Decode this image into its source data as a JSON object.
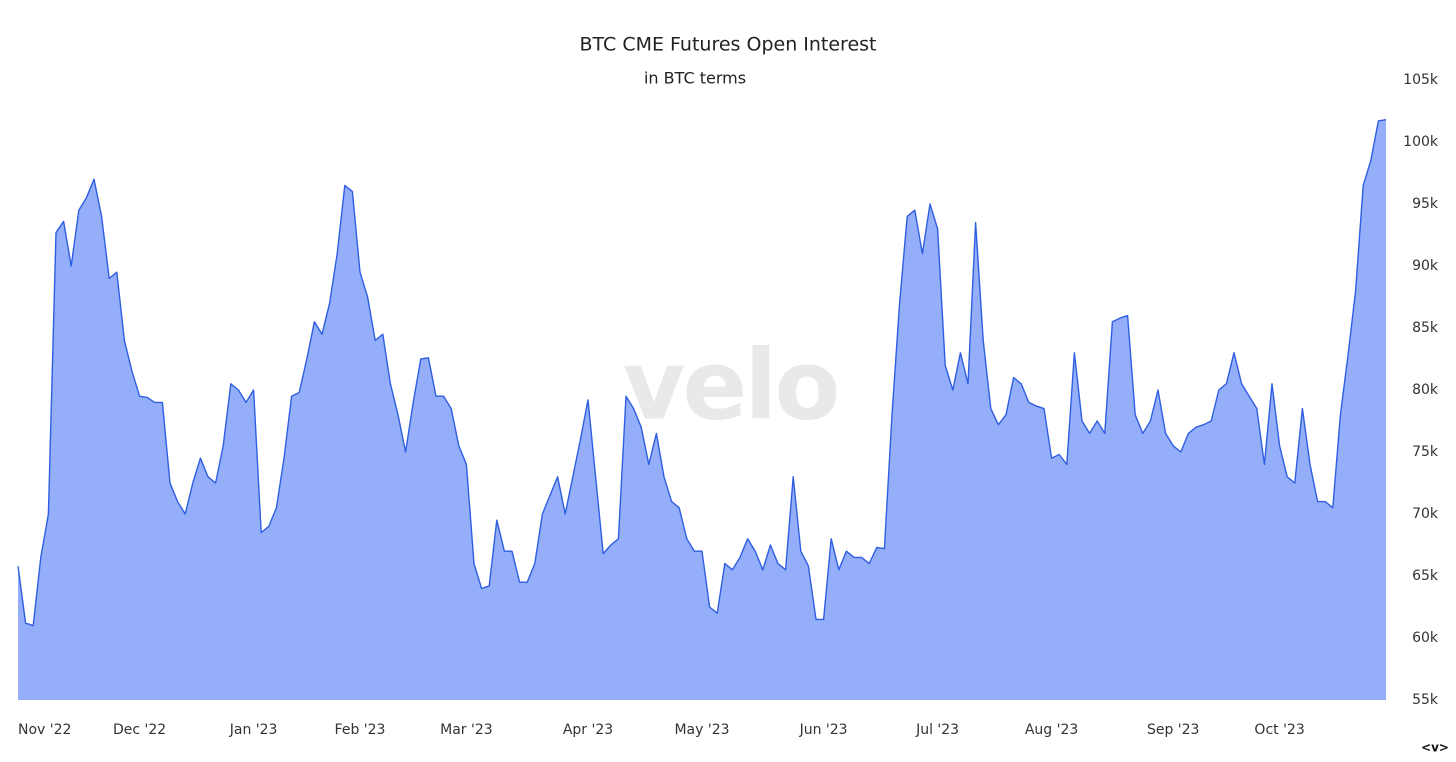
{
  "chart_data": {
    "type": "area",
    "title": "BTC CME Futures Open Interest",
    "subtitle": "in BTC terms",
    "watermark": "velo",
    "badge": "<v>",
    "categories": [
      "Nov '22",
      null,
      null,
      null,
      null,
      null,
      null,
      null,
      null,
      null,
      null,
      null,
      null,
      null,
      null,
      null,
      "Dec '22",
      null,
      null,
      null,
      null,
      null,
      null,
      null,
      null,
      null,
      null,
      null,
      null,
      null,
      null,
      "Jan '23",
      null,
      null,
      null,
      null,
      null,
      null,
      null,
      null,
      null,
      null,
      null,
      null,
      null,
      "Feb '23",
      null,
      null,
      null,
      null,
      null,
      null,
      null,
      null,
      null,
      null,
      null,
      null,
      null,
      "Mar '23",
      null,
      null,
      null,
      null,
      null,
      null,
      null,
      null,
      null,
      null,
      null,
      null,
      null,
      null,
      null,
      "Apr '23",
      null,
      null,
      null,
      null,
      null,
      null,
      null,
      null,
      null,
      null,
      null,
      null,
      null,
      null,
      "May '23",
      null,
      null,
      null,
      null,
      null,
      null,
      null,
      null,
      null,
      null,
      null,
      null,
      null,
      null,
      null,
      "Jun '23",
      null,
      null,
      null,
      null,
      null,
      null,
      null,
      null,
      null,
      null,
      null,
      null,
      null,
      null,
      "Jul '23",
      null,
      null,
      null,
      null,
      null,
      null,
      null,
      null,
      null,
      null,
      null,
      null,
      null,
      null,
      "Aug '23",
      null,
      null,
      null,
      null,
      null,
      null,
      null,
      null,
      null,
      null,
      null,
      null,
      null,
      null,
      null,
      "Sep '23",
      null,
      null,
      null,
      null,
      null,
      null,
      null,
      null,
      null,
      null,
      null,
      null,
      null,
      "Oct '23",
      null,
      null,
      null,
      null,
      null,
      null,
      null,
      null,
      null,
      null,
      null,
      null,
      null,
      null
    ],
    "values": [
      65800,
      61200,
      61000,
      66500,
      70000,
      92700,
      93600,
      90000,
      94500,
      95500,
      97000,
      94000,
      89000,
      89500,
      84000,
      81500,
      79500,
      79400,
      79000,
      79000,
      72500,
      71000,
      70000,
      72500,
      74500,
      73000,
      72500,
      75500,
      80500,
      80000,
      79000,
      80000,
      68500,
      69000,
      70500,
      74500,
      79500,
      79800,
      82500,
      85500,
      84500,
      87000,
      91000,
      96500,
      96000,
      89500,
      87500,
      84000,
      84500,
      80500,
      78000,
      75000,
      79000,
      82500,
      82600,
      79500,
      79500,
      78500,
      75500,
      74000,
      66000,
      64000,
      64200,
      69500,
      67000,
      67000,
      64500,
      64500,
      66000,
      70000,
      71500,
      73000,
      70000,
      73000,
      76000,
      79200,
      73000,
      66800,
      67500,
      68000,
      79500,
      78500,
      77000,
      74000,
      76500,
      73000,
      71000,
      70500,
      68000,
      67000,
      67000,
      62500,
      62000,
      66000,
      65500,
      66500,
      68000,
      67000,
      65500,
      67500,
      66000,
      65500,
      73000,
      67000,
      65800,
      61500,
      61500,
      68000,
      65500,
      67000,
      66500,
      66500,
      66000,
      67300,
      67200,
      78000,
      87000,
      94000,
      94500,
      91000,
      95000,
      93000,
      82000,
      80000,
      83000,
      80500,
      93500,
      84000,
      78500,
      77200,
      78000,
      81000,
      80500,
      79000,
      78700,
      78500,
      74500,
      74800,
      74000,
      83000,
      77500,
      76500,
      77500,
      76500,
      85500,
      85800,
      86000,
      78000,
      76500,
      77500,
      80000,
      76500,
      75500,
      75000,
      76500,
      77000,
      77200,
      77500,
      80000,
      80500,
      83000,
      80500,
      79500,
      78500,
      74000,
      80500,
      75500,
      73000,
      72500,
      78500,
      74000,
      71000,
      71000,
      70500,
      78000,
      82800,
      88000,
      96500,
      98500,
      101700,
      101800
    ],
    "color": "#2f5fe0",
    "fill_color": "#94aefa",
    "ylim": [
      55000,
      105000
    ],
    "yticks": [
      {
        "value": 55000,
        "label": "55k"
      },
      {
        "value": 60000,
        "label": "60k"
      },
      {
        "value": 65000,
        "label": "65k"
      },
      {
        "value": 70000,
        "label": "70k"
      },
      {
        "value": 75000,
        "label": "75k"
      },
      {
        "value": 80000,
        "label": "80k"
      },
      {
        "value": 85000,
        "label": "85k"
      },
      {
        "value": 90000,
        "label": "90k"
      },
      {
        "value": 95000,
        "label": "95k"
      },
      {
        "value": 100000,
        "label": "100k"
      },
      {
        "value": 105000,
        "label": "105k"
      }
    ],
    "grid": false
  }
}
